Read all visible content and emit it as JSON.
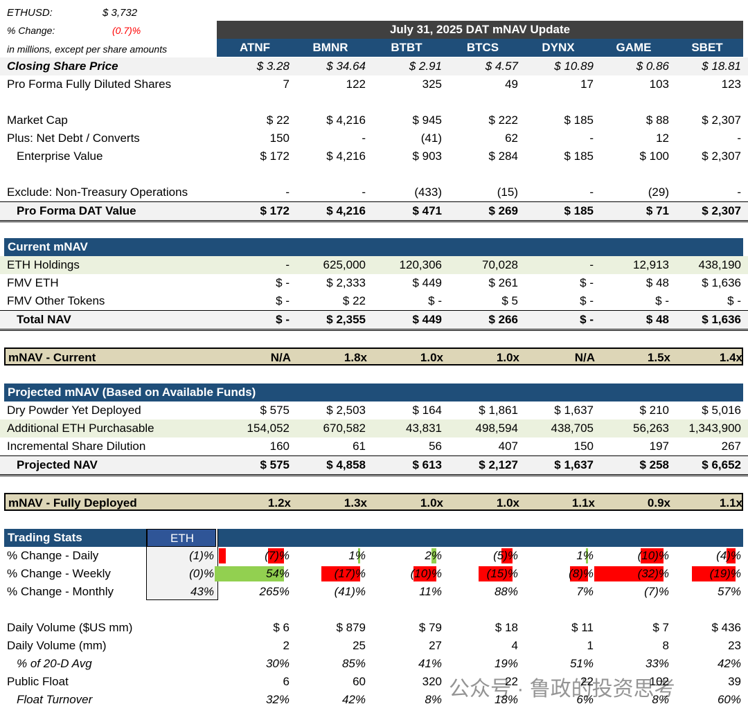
{
  "top": {
    "ethusd_label": "ETHUSD:",
    "ethusd_value": "$ 3,732",
    "change_label": "% Change:",
    "change_value": "(0.7)%",
    "units_note": "in millions, except per share amounts",
    "title": "July 31, 2025 DAT mNAV Update"
  },
  "tickers": [
    "ATNF",
    "BMNR",
    "BTBT",
    "BTCS",
    "DYNX",
    "GAME",
    "SBET"
  ],
  "rows": {
    "closing_price": {
      "label": "Closing Share Price",
      "values": [
        "$ 3.28",
        "$ 34.64",
        "$ 2.91",
        "$ 4.57",
        "$ 10.89",
        "$ 0.86",
        "$ 18.81"
      ]
    },
    "shares": {
      "label": "Pro Forma Fully Diluted Shares",
      "values": [
        "7",
        "122",
        "325",
        "49",
        "17",
        "103",
        "123"
      ]
    },
    "market_cap": {
      "label": "Market Cap",
      "values": [
        "$ 22",
        "$ 4,216",
        "$ 945",
        "$ 222",
        "$ 185",
        "$ 88",
        "$ 2,307"
      ]
    },
    "net_debt": {
      "label": "Plus: Net Debt / Converts",
      "values": [
        "150",
        "-",
        "(41)",
        "62",
        "-",
        "12",
        "-"
      ]
    },
    "ev": {
      "label": "Enterprise Value",
      "values": [
        "$ 172",
        "$ 4,216",
        "$ 903",
        "$ 284",
        "$ 185",
        "$ 100",
        "$ 2,307"
      ]
    },
    "exclude": {
      "label": "Exclude: Non-Treasury Operations",
      "values": [
        "-",
        "-",
        "(433)",
        "(15)",
        "-",
        "(29)",
        "-"
      ]
    },
    "dat_value": {
      "label": "Pro Forma DAT Value",
      "values": [
        "$ 172",
        "$ 4,216",
        "$ 471",
        "$ 269",
        "$ 185",
        "$ 71",
        "$ 2,307"
      ]
    }
  },
  "current": {
    "header": "Current mNAV",
    "eth_holdings": {
      "label": "ETH Holdings",
      "values": [
        "-",
        "625,000",
        "120,306",
        "70,028",
        "-",
        "12,913",
        "438,190"
      ]
    },
    "fmv_eth": {
      "label": "FMV ETH",
      "values": [
        "$ -",
        "$ 2,333",
        "$ 449",
        "$ 261",
        "$ -",
        "$ 48",
        "$ 1,636"
      ]
    },
    "fmv_other": {
      "label": "FMV Other Tokens",
      "values": [
        "$ -",
        "$ 22",
        "$ -",
        "$ 5",
        "$ -",
        "$ -",
        "$ -"
      ]
    },
    "total_nav": {
      "label": "Total NAV",
      "values": [
        "$ -",
        "$ 2,355",
        "$ 449",
        "$ 266",
        "$ -",
        "$ 48",
        "$ 1,636"
      ]
    },
    "mnav": {
      "label": "mNAV - Current",
      "values": [
        "N/A",
        "1.8x",
        "1.0x",
        "1.0x",
        "N/A",
        "1.5x",
        "1.4x"
      ]
    }
  },
  "projected": {
    "header": "Projected mNAV (Based on Available Funds)",
    "dry_powder": {
      "label": "Dry Powder Yet Deployed",
      "values": [
        "$ 575",
        "$ 2,503",
        "$ 164",
        "$ 1,861",
        "$ 1,637",
        "$ 210",
        "$ 5,016"
      ]
    },
    "add_eth": {
      "label": "Additional ETH Purchasable",
      "values": [
        "154,052",
        "670,582",
        "43,831",
        "498,594",
        "438,705",
        "56,263",
        "1,343,900"
      ]
    },
    "dilution": {
      "label": "Incremental Share Dilution",
      "values": [
        "160",
        "61",
        "56",
        "407",
        "150",
        "197",
        "267"
      ]
    },
    "proj_nav": {
      "label": "Projected NAV",
      "values": [
        "$ 575",
        "$ 4,858",
        "$ 613",
        "$ 2,127",
        "$ 1,637",
        "$ 258",
        "$ 6,652"
      ]
    },
    "mnav": {
      "label": "mNAV - Fully Deployed",
      "values": [
        "1.2x",
        "1.3x",
        "1.0x",
        "1.0x",
        "1.1x",
        "0.9x",
        "1.1x"
      ]
    }
  },
  "trading": {
    "header": "Trading Stats",
    "eth_header": "ETH",
    "daily": {
      "label": "% Change - Daily",
      "eth": "(1)%",
      "values": [
        "(7)%",
        "1%",
        "2%",
        "(5)%",
        "1%",
        "(10)%",
        "(4)%"
      ],
      "numeric": [
        -7,
        1,
        2,
        -5,
        1,
        -10,
        -4
      ]
    },
    "weekly": {
      "label": "% Change - Weekly",
      "eth": "(0)%",
      "values": [
        "54%",
        "(17)%",
        "(10)%",
        "(15)%",
        "(8)%",
        "(32)%",
        "(19)%"
      ],
      "numeric": [
        54,
        -17,
        -10,
        -15,
        -8,
        -32,
        -19
      ]
    },
    "monthly": {
      "label": "% Change - Monthly",
      "eth": "43%",
      "values": [
        "265%",
        "(41)%",
        "11%",
        "88%",
        "7%",
        "(7)%",
        "57%"
      ]
    },
    "eth_daily_numeric": -1,
    "vol_usd": {
      "label": "Daily Volume ($US mm)",
      "values": [
        "$ 6",
        "$ 879",
        "$ 79",
        "$ 18",
        "$ 11",
        "$ 7",
        "$ 436"
      ]
    },
    "vol_mm": {
      "label": "Daily Volume (mm)",
      "values": [
        "2",
        "25",
        "27",
        "4",
        "1",
        "8",
        "23"
      ]
    },
    "pct_20d": {
      "label": "% of 20-D Avg",
      "values": [
        "30%",
        "85%",
        "41%",
        "19%",
        "51%",
        "33%",
        "42%"
      ]
    },
    "float": {
      "label": "Public Float",
      "values": [
        "6",
        "60",
        "320",
        "22",
        "22",
        "102",
        "39"
      ]
    },
    "turnover": {
      "label": "Float Turnover",
      "values": [
        "32%",
        "42%",
        "8%",
        "18%",
        "6%",
        "8%",
        "60%"
      ]
    }
  },
  "colors": {
    "header_blue": "#1f4e79",
    "tan": "#ddd6b7",
    "green_row": "#ebf1de",
    "neg_red": "#ff0000",
    "pos_green": "#92d050"
  },
  "watermark": "公众号 · 鲁政的投资思考"
}
